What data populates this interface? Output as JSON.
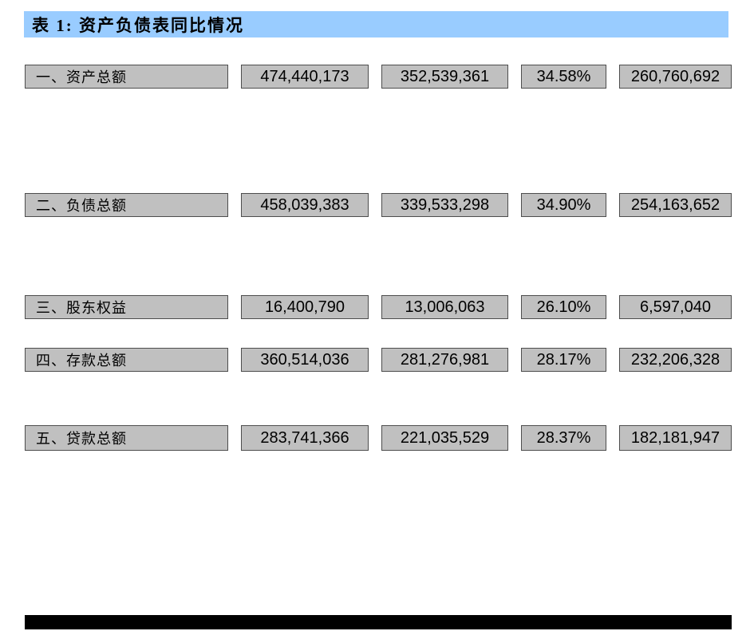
{
  "page": {
    "background": "#FFFFFF"
  },
  "title_bar": {
    "text": "表 1: 资产负债表同比情况",
    "background": "#99CCFF",
    "text_color": "#000000"
  },
  "table": {
    "cell_background": "#C0C0C0",
    "rows": [
      {
        "cells": [
          "一、资产总额",
          "474,440,173",
          "352,539,361",
          "34.58%",
          "260,760,692"
        ]
      },
      {
        "cells": [
          "二、负债总额",
          "458,039,383",
          "339,533,298",
          "34.90%",
          "254,163,652"
        ]
      },
      {
        "cells": [
          "三、股东权益",
          "16,400,790",
          "13,006,063",
          "26.10%",
          "6,597,040"
        ]
      },
      {
        "cells": [
          "四、存款总额",
          "360,514,036",
          "281,276,981",
          "28.17%",
          "232,206,328"
        ]
      },
      {
        "cells": [
          "五、贷款总额",
          "283,741,366",
          "221,035,529",
          "28.37%",
          "182,181,947"
        ]
      }
    ]
  },
  "footer_bar": {
    "background": "#000000"
  }
}
